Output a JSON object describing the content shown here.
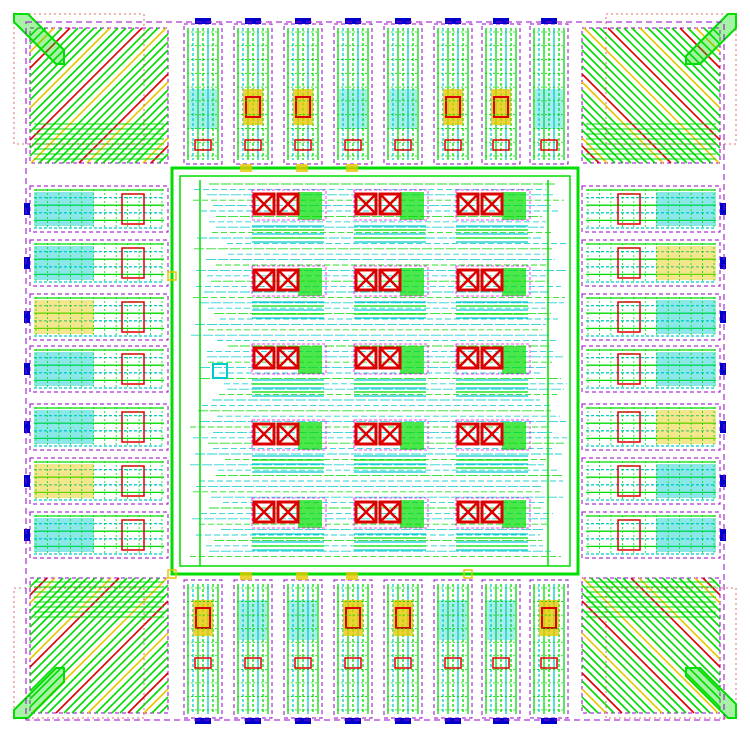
{
  "view": {
    "title": "",
    "background": "#ffffff"
  },
  "layers": {
    "metal1": "#00dd00",
    "metal2": "#00cccc",
    "poly": "#dd0000",
    "diffusion": "#e6c800",
    "boundary": "#9900cc",
    "pin": "#0000cc",
    "implant": "#ff00ff",
    "outline": "#dd4444"
  },
  "pad_ring": {
    "top_pads": 8,
    "bottom_pads": 8,
    "left_pads": 7,
    "right_pads": 7,
    "corner_cells": 4
  },
  "core": {
    "cell_rows": 5,
    "cell_cols": 3,
    "cell_icon": "crossed-box-icon"
  }
}
